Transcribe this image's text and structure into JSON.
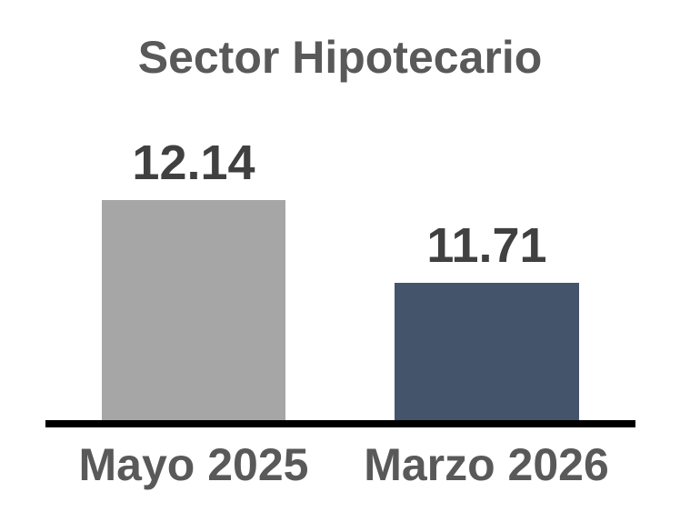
{
  "chart_data": {
    "type": "bar",
    "title": "Sector Hipotecario",
    "categories": [
      "Mayo 2025",
      "Marzo 2026"
    ],
    "values": [
      12.14,
      11.71
    ],
    "data_labels": [
      "12.14",
      "11.71"
    ],
    "series": [
      {
        "name": "Sector Hipotecario",
        "values": [
          12.14,
          11.71
        ]
      }
    ],
    "bar_colors": [
      "#A6A6A6",
      "#44546A"
    ],
    "ylim": [
      11.0,
      12.2
    ],
    "xlabel": "",
    "ylabel": "",
    "grid": false,
    "legend_position": "none",
    "y_axis_visible": false,
    "axis_line_color": "#000000",
    "title_color": "#595959",
    "value_label_color": "#404040",
    "category_label_color": "#595959",
    "background_color": "#FFFFFF"
  }
}
